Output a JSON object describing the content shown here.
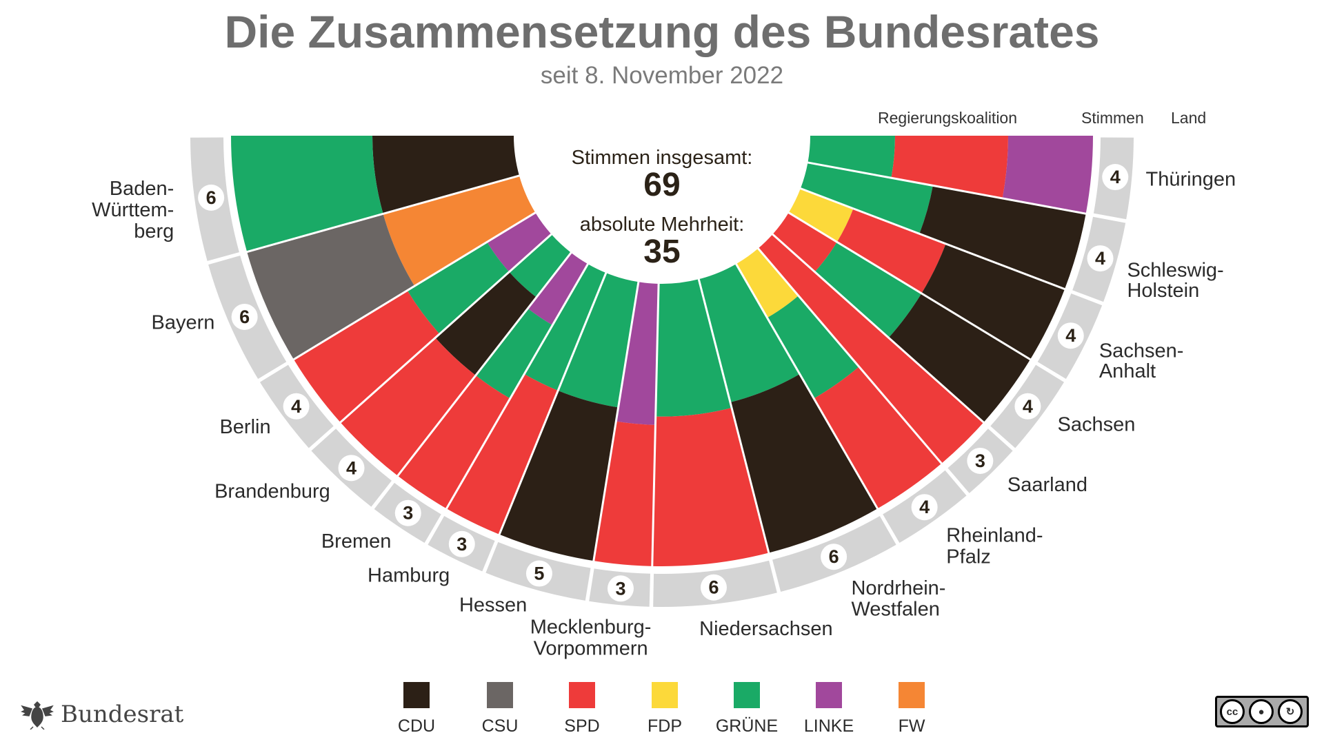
{
  "title": "Die Zusammensetzung des Bundesrates",
  "subtitle": "seit 8. November 2022",
  "headers": {
    "coalition": "Regierungskoalition",
    "votes": "Stimmen",
    "state": "Land"
  },
  "center": {
    "total_label": "Stimmen insgesamt:",
    "total": "69",
    "majority_label": "absolute Mehrheit:",
    "majority": "35"
  },
  "logo_text": "Bundesrat",
  "license": {
    "cc": "cc",
    "by": "BY",
    "sa": "SA"
  },
  "colors": {
    "CDU": "#2c2016",
    "CSU": "#6b6664",
    "SPD": "#ee3b3a",
    "FDP": "#fcd93a",
    "GRÜNE": "#1aaa66",
    "LINKE": "#a1489c",
    "FW": "#f58634",
    "ring": "#d4d4d4"
  },
  "legend": [
    "CDU",
    "CSU",
    "SPD",
    "FDP",
    "GRÜNE",
    "LINKE",
    "FW"
  ],
  "chart_data": {
    "type": "semicircle-parliament",
    "total_votes": 69,
    "majority": 35,
    "states": [
      {
        "name": [
          "Baden-",
          "Württem-",
          "berg"
        ],
        "votes": 6,
        "bands": [
          [
            "CDU",
            0.5
          ],
          [
            "GRÜNE",
            0.5
          ]
        ]
      },
      {
        "name": [
          "Bayern"
        ],
        "votes": 6,
        "bands": [
          [
            "FW",
            0.5
          ],
          [
            "CSU",
            0.5
          ]
        ]
      },
      {
        "name": [
          "Berlin"
        ],
        "votes": 4,
        "bands": [
          [
            "LINKE",
            0.2
          ],
          [
            "GRÜNE",
            0.33
          ],
          [
            "SPD",
            0.47
          ]
        ]
      },
      {
        "name": [
          "Brandenburg"
        ],
        "votes": 4,
        "bands": [
          [
            "GRÜNE",
            0.2
          ],
          [
            "CDU",
            0.35
          ],
          [
            "SPD",
            0.45
          ]
        ]
      },
      {
        "name": [
          "Bremen"
        ],
        "votes": 3,
        "bands": [
          [
            "LINKE",
            0.25
          ],
          [
            "GRÜNE",
            0.3
          ],
          [
            "SPD",
            0.45
          ]
        ]
      },
      {
        "name": [
          "Hamburg"
        ],
        "votes": 3,
        "bands": [
          [
            "GRÜNE",
            0.45
          ],
          [
            "SPD",
            0.55
          ]
        ]
      },
      {
        "name": [
          "Hessen"
        ],
        "votes": 5,
        "bands": [
          [
            "GRÜNE",
            0.45
          ],
          [
            "CDU",
            0.55
          ]
        ]
      },
      {
        "name": [
          "Mecklenburg-",
          "Vorpommern"
        ],
        "votes": 3,
        "bands": [
          [
            "LINKE",
            0.5
          ],
          [
            "SPD",
            0.5
          ]
        ]
      },
      {
        "name": [
          "Niedersachsen"
        ],
        "votes": 6,
        "bands": [
          [
            "GRÜNE",
            0.47
          ],
          [
            "SPD",
            0.53
          ]
        ]
      },
      {
        "name": [
          "Nordrhein-",
          "Westfalen"
        ],
        "votes": 6,
        "bands": [
          [
            "GRÜNE",
            0.45
          ],
          [
            "CDU",
            0.55
          ]
        ]
      },
      {
        "name": [
          "Rheinland-",
          "Pfalz"
        ],
        "votes": 4,
        "bands": [
          [
            "FDP",
            0.22
          ],
          [
            "GRÜNE",
            0.33
          ],
          [
            "SPD",
            0.45
          ]
        ]
      },
      {
        "name": [
          "Saarland"
        ],
        "votes": 3,
        "bands": [
          [
            "SPD",
            1.0
          ]
        ]
      },
      {
        "name": [
          "Sachsen"
        ],
        "votes": 4,
        "bands": [
          [
            "SPD",
            0.2
          ],
          [
            "GRÜNE",
            0.35
          ],
          [
            "CDU",
            0.45
          ]
        ]
      },
      {
        "name": [
          "Sachsen-",
          "Anhalt"
        ],
        "votes": 4,
        "bands": [
          [
            "FDP",
            0.2
          ],
          [
            "SPD",
            0.35
          ],
          [
            "CDU",
            0.45
          ]
        ]
      },
      {
        "name": [
          "Schleswig-",
          "Holstein"
        ],
        "votes": 4,
        "bands": [
          [
            "GRÜNE",
            0.45
          ],
          [
            "CDU",
            0.55
          ]
        ]
      },
      {
        "name": [
          "Thüringen"
        ],
        "votes": 4,
        "bands": [
          [
            "GRÜNE",
            0.3
          ],
          [
            "SPD",
            0.4
          ],
          [
            "LINKE",
            0.3
          ]
        ]
      }
    ]
  }
}
